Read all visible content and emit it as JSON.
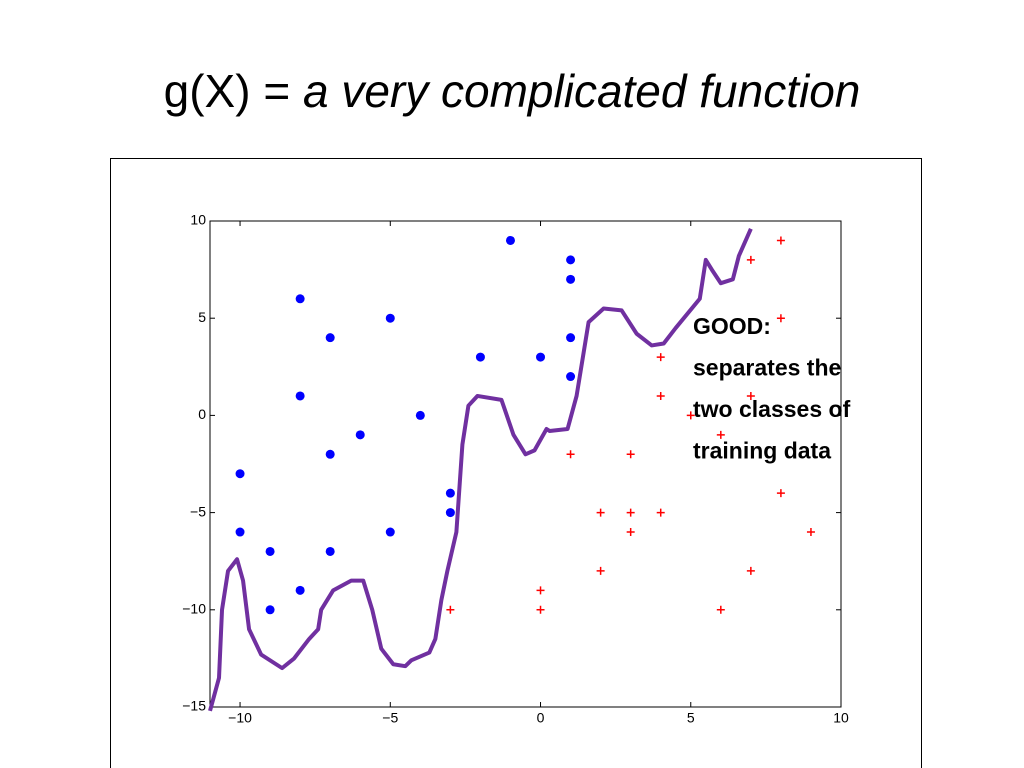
{
  "title": "g(X) =",
  "title_emphasis": "a very complicated function",
  "chart_data": {
    "type": "scatter",
    "xlim": [
      -11,
      10
    ],
    "ylim": [
      -15,
      10
    ],
    "xticks": [
      {
        "value": -10,
        "label": "−10"
      },
      {
        "value": -5,
        "label": "−5"
      },
      0,
      5,
      10
    ],
    "yticks": [
      {
        "value": -15,
        "label": "−15"
      },
      {
        "value": -10,
        "label": "−10"
      },
      {
        "value": -5,
        "label": "−5"
      },
      0,
      5,
      10
    ],
    "grid": false,
    "series": [
      {
        "color": "#0000ff",
        "marker": "circle",
        "x": [
          -10,
          -10,
          -9,
          -9,
          -8,
          -8,
          -8,
          -7,
          -7,
          -7,
          -6,
          -5,
          -5,
          -4,
          -3,
          -3,
          -2,
          -1,
          0,
          1,
          1,
          1,
          1
        ],
        "values": [
          -3,
          -6,
          -7,
          -10,
          6,
          1,
          -9,
          4,
          -2,
          -7,
          -1,
          5,
          -6,
          0,
          -4,
          -5,
          3,
          9,
          3,
          8,
          7,
          4,
          2
        ]
      },
      {
        "color": "#ff0000",
        "marker": "plus",
        "x": [
          -3,
          0,
          0,
          1,
          2,
          2,
          3,
          3,
          3,
          4,
          4,
          4,
          5,
          6,
          6,
          7,
          7,
          7,
          8,
          8,
          8,
          9
        ],
        "values": [
          -10,
          -9,
          -10,
          -2,
          -5,
          -8,
          -2,
          -5,
          -6,
          3,
          1,
          -5,
          0,
          -1,
          -10,
          8,
          1,
          -8,
          9,
          5,
          -4,
          -6
        ]
      },
      {
        "color": "#7030a0",
        "marker": "line",
        "x": [
          -11,
          -10.7,
          -10.6,
          -10.4,
          -10.1,
          -9.9,
          -9.7,
          -9.3,
          -8.6,
          -8.2,
          -7.7,
          -7.4,
          -7.3,
          -6.9,
          -6.3,
          -5.9,
          -5.6,
          -5.3,
          -4.9,
          -4.5,
          -4.3,
          -3.7,
          -3.5,
          -3.3,
          -3.1,
          -2.8,
          -2.6,
          -2.4,
          -2.1,
          -1.3,
          -0.9,
          -0.5,
          -0.2,
          0.2,
          0.3,
          0.9,
          1.2,
          1.6,
          2.1,
          2.7,
          3.2,
          3.7,
          4.1,
          4.5,
          5.3,
          5.5,
          5.7,
          6,
          6.4,
          6.6,
          7
        ],
        "values": [
          -15.2,
          -13.5,
          -10,
          -8,
          -7.4,
          -8.5,
          -11,
          -12.3,
          -13,
          -12.5,
          -11.5,
          -11,
          -10,
          -9,
          -8.5,
          -8.5,
          -10,
          -12,
          -12.8,
          -12.9,
          -12.6,
          -12.2,
          -11.5,
          -9.5,
          -8,
          -6,
          -1.5,
          0.5,
          1,
          0.8,
          -1,
          -2,
          -1.8,
          -0.7,
          -0.8,
          -0.7,
          1,
          4.8,
          5.5,
          5.4,
          4.2,
          3.6,
          3.7,
          4.5,
          6,
          8,
          7.5,
          6.8,
          7,
          8.2,
          9.6
        ]
      }
    ],
    "annotation": [
      "GOOD:",
      "separates the",
      "two classes of",
      "training data"
    ]
  }
}
